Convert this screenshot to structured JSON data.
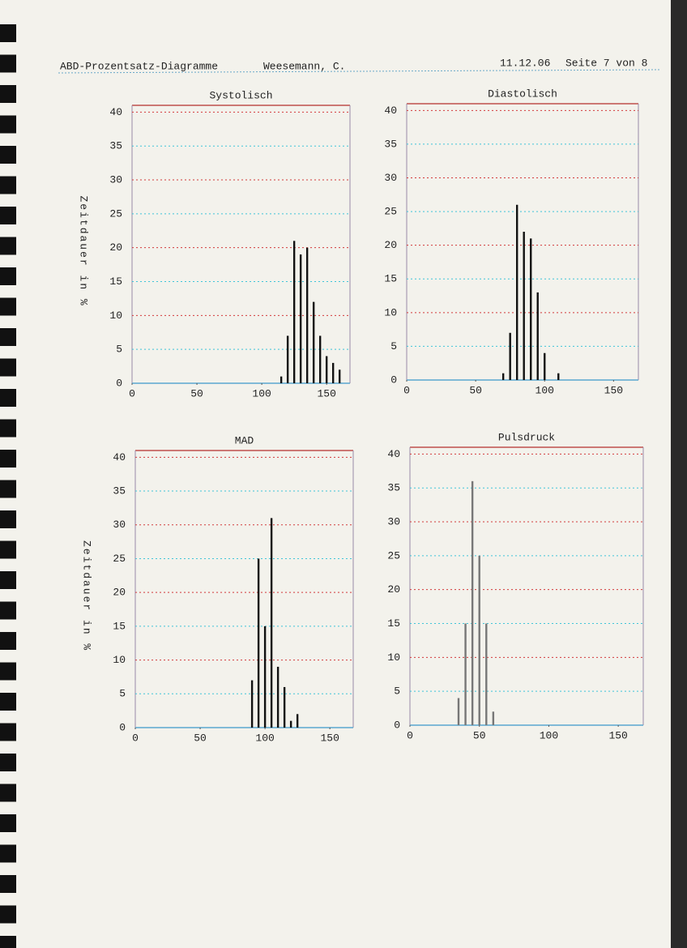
{
  "header": {
    "title": "ABD-Prozentsatz-Diagramme",
    "name": "Weesemann, C.",
    "date": "11.12.06",
    "page": "Seite 7 von 8"
  },
  "chart_data": [
    {
      "type": "bar",
      "title": "Systolisch",
      "ylabel": "Zeitdauer in %",
      "x": [
        115,
        120,
        125,
        130,
        135,
        140,
        145,
        150,
        155,
        160
      ],
      "values": [
        1,
        7,
        21,
        19,
        20,
        12,
        7,
        4,
        3,
        2
      ],
      "color": "#111111",
      "xlim": [
        0,
        168
      ],
      "ylim": [
        0,
        41
      ],
      "xticks": [
        0,
        50,
        100,
        150
      ],
      "yticks": [
        0,
        5,
        10,
        15,
        20,
        25,
        30,
        35,
        40
      ],
      "grid": true
    },
    {
      "type": "bar",
      "title": "Diastolisch",
      "x": [
        70,
        75,
        80,
        85,
        90,
        95,
        100,
        110
      ],
      "values": [
        1,
        7,
        26,
        22,
        21,
        13,
        4,
        1
      ],
      "color": "#111111",
      "xlim": [
        0,
        168
      ],
      "ylim": [
        0,
        41
      ],
      "xticks": [
        0,
        50,
        100,
        150
      ],
      "yticks": [
        0,
        5,
        10,
        15,
        20,
        25,
        30,
        35,
        40
      ],
      "grid": true
    },
    {
      "type": "bar",
      "title": "MAD",
      "ylabel": "Zeitdauer in %",
      "x": [
        90,
        95,
        100,
        105,
        110,
        115,
        120,
        125
      ],
      "values": [
        7,
        25,
        15,
        31,
        9,
        6,
        1,
        2
      ],
      "color": "#111111",
      "xlim": [
        0,
        168
      ],
      "ylim": [
        0,
        41
      ],
      "xticks": [
        0,
        50,
        100,
        150
      ],
      "yticks": [
        0,
        5,
        10,
        15,
        20,
        25,
        30,
        35,
        40
      ],
      "grid": true
    },
    {
      "type": "bar",
      "title": "Pulsdruck",
      "x": [
        35,
        40,
        45,
        50,
        55,
        60
      ],
      "values": [
        4,
        15,
        36,
        25,
        15,
        2
      ],
      "color": "#777777",
      "xlim": [
        0,
        168
      ],
      "ylim": [
        0,
        41
      ],
      "xticks": [
        0,
        50,
        100,
        150
      ],
      "yticks": [
        0,
        5,
        10,
        15,
        20,
        25,
        30,
        35,
        40
      ],
      "grid": true
    }
  ]
}
